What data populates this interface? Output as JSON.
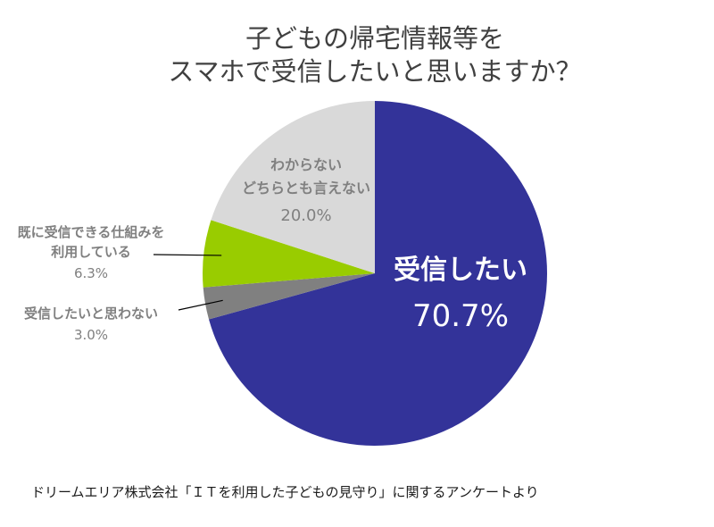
{
  "chart_data": {
    "type": "pie",
    "title_lines": [
      "子どもの帰宅情報等を",
      "スマホで受信したいと思いますか？"
    ],
    "slices": [
      {
        "label_lines": [
          "受信したい"
        ],
        "value": 70.7,
        "value_text": "70.7%",
        "color": "#333399",
        "label_color": "#ffffff"
      },
      {
        "label_lines": [
          "受信したいと思わない"
        ],
        "value": 3.0,
        "value_text": "3.0%",
        "color": "#808080",
        "label_color": "#808080"
      },
      {
        "label_lines": [
          "既に受信できる仕組みを",
          "利用している"
        ],
        "value": 6.3,
        "value_text": "6.3%",
        "color": "#99cc00",
        "label_color": "#808080"
      },
      {
        "label_lines": [
          "わからない",
          "どちらとも言えない"
        ],
        "value": 20.0,
        "value_text": "20.0%",
        "color": "#d9d9d9",
        "label_color": "#808080"
      }
    ],
    "start": "12 o'clock",
    "direction": "clockwise"
  },
  "source": "ドリームエリア株式会社「ＩＴを利用した子どもの見守り」に関するアンケートより"
}
